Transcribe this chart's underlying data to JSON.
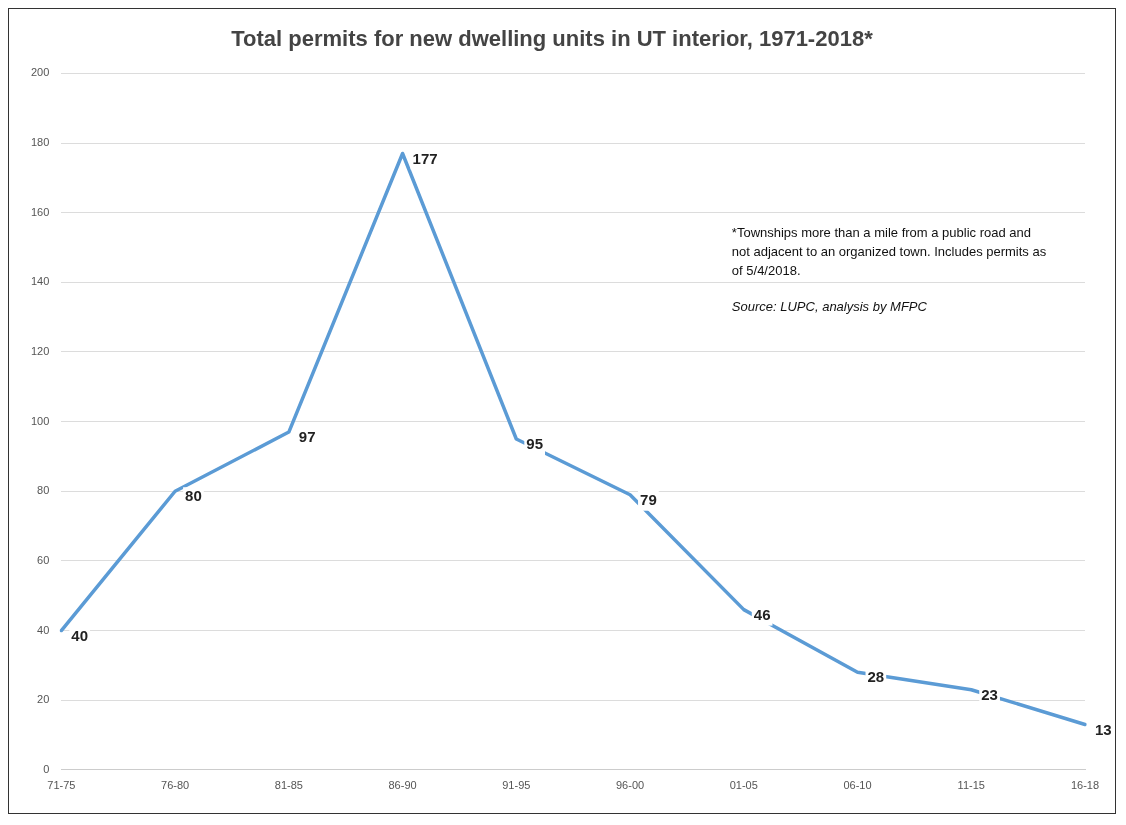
{
  "chart_data": {
    "type": "line",
    "title": "Total permits for new dwelling units in UT interior, 1971-2018*",
    "categories": [
      "71-75",
      "76-80",
      "81-85",
      "86-90",
      "91-95",
      "96-00",
      "01-05",
      "06-10",
      "11-15",
      "16-18"
    ],
    "series": [
      {
        "color": "#5b9bd5",
        "values": [
          40,
          80,
          97,
          177,
          95,
          79,
          46,
          28,
          23,
          13
        ]
      }
    ],
    "ylim": [
      0,
      200
    ],
    "yticks": [
      0,
      20,
      40,
      60,
      80,
      100,
      120,
      140,
      160,
      180,
      200
    ],
    "grid": "y",
    "legend": false,
    "marker": "none",
    "line_style": "solid",
    "data_labels": true,
    "annotations": [
      "*Townships more than a mile from a public road and not adjacent to an organized town. Includes permits as of 5/4/2018.",
      "Source: LUPC, analysis by MFPC"
    ]
  }
}
